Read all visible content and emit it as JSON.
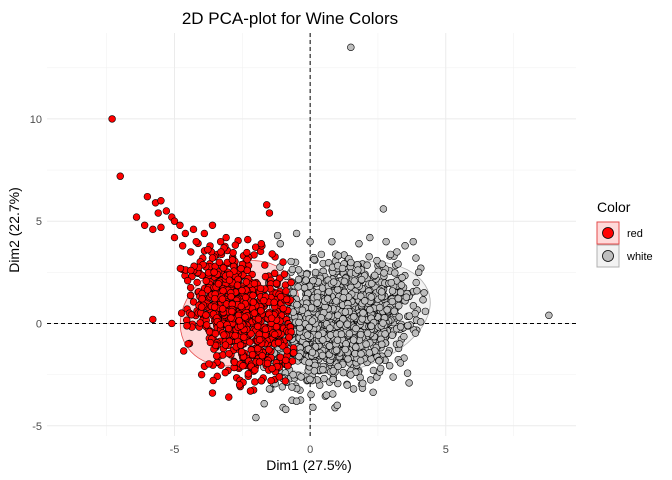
{
  "chart_data": {
    "type": "scatter",
    "title": "2D PCA-plot for Wine Colors",
    "xlabel": "Dim1 (27.5%)",
    "ylabel": "Dim2 (22.7%)",
    "xlim": [
      -9.7,
      9.8
    ],
    "ylim": [
      -5.5,
      14.2
    ],
    "xticks": [
      -5,
      0,
      5
    ],
    "yticks": [
      -5,
      0,
      5,
      10
    ],
    "grid": true,
    "reference_lines": {
      "x": 0,
      "y": 0,
      "style": "dashed"
    },
    "legend": {
      "title": "Color",
      "position": "right"
    },
    "series": [
      {
        "name": "red",
        "fill": "#ff0000",
        "ellipse": {
          "center": [
            -2.6,
            0.5
          ],
          "rx": 2.3,
          "ry": 2.4,
          "angle": -30
        },
        "points": [
          [
            -7.3,
            10.0
          ],
          [
            -7.0,
            7.2
          ],
          [
            -6.0,
            6.2
          ],
          [
            -5.7,
            5.9
          ],
          [
            -5.5,
            6.0
          ],
          [
            -5.3,
            5.5
          ],
          [
            -5.1,
            5.2
          ],
          [
            -5.0,
            5.0
          ],
          [
            -5.6,
            5.4
          ],
          [
            -6.4,
            5.2
          ],
          [
            -6.1,
            4.8
          ],
          [
            -5.8,
            4.6
          ],
          [
            -5.5,
            4.7
          ],
          [
            -4.8,
            4.8
          ],
          [
            -4.6,
            4.4
          ],
          [
            -4.3,
            4.6
          ],
          [
            -3.9,
            4.4
          ],
          [
            -4.2,
            4.0
          ],
          [
            -3.6,
            4.8
          ],
          [
            -1.6,
            5.8
          ],
          [
            -1.5,
            5.4
          ],
          [
            -5.0,
            4.2
          ],
          [
            -4.7,
            3.8
          ],
          [
            -4.4,
            3.5
          ],
          [
            -5.8,
            0.2
          ],
          [
            -5.1,
            0.0
          ],
          [
            -4.5,
            -1.0
          ],
          [
            -4.0,
            -2.5
          ],
          [
            -3.6,
            -3.4
          ],
          [
            -3.0,
            -3.6
          ],
          [
            -2.6,
            -3.0
          ],
          [
            -2.2,
            -3.3
          ],
          [
            -1.8,
            -2.8
          ],
          [
            -1.4,
            -2.2
          ],
          [
            -0.9,
            -1.8
          ],
          [
            -0.7,
            2.0
          ],
          [
            -1.0,
            3.0
          ],
          [
            -1.4,
            3.4
          ],
          [
            -1.8,
            3.9
          ],
          [
            -2.3,
            4.1
          ],
          [
            -3.3,
            4.0
          ],
          [
            -3.6,
            3.2
          ]
        ]
      },
      {
        "name": "white",
        "fill": "#bebebe",
        "ellipse": {
          "center": [
            1.2,
            0.3
          ],
          "rx": 3.3,
          "ry": 2.6,
          "angle": -15
        },
        "points": [
          [
            1.5,
            13.5
          ],
          [
            8.8,
            0.4
          ],
          [
            2.7,
            5.6
          ],
          [
            -2.0,
            -4.6
          ],
          [
            -0.9,
            -4.2
          ],
          [
            0.1,
            -4.1
          ],
          [
            1.0,
            -4.0
          ],
          [
            4.2,
            1.5
          ],
          [
            4.0,
            2.5
          ],
          [
            3.5,
            3.8
          ],
          [
            3.8,
            4.0
          ],
          [
            3.9,
            3.2
          ],
          [
            3.2,
            3.5
          ],
          [
            2.8,
            4.0
          ],
          [
            2.2,
            4.2
          ],
          [
            1.8,
            3.9
          ],
          [
            0.8,
            4.0
          ],
          [
            0.0,
            4.0
          ],
          [
            -0.5,
            4.4
          ],
          [
            -1.2,
            4.3
          ],
          [
            -1.1,
            3.9
          ],
          [
            3.3,
            -1.0
          ],
          [
            3.6,
            -0.1
          ],
          [
            3.1,
            0.6
          ],
          [
            2.6,
            -2.2
          ],
          [
            1.6,
            -3.2
          ],
          [
            0.6,
            -3.5
          ],
          [
            -0.5,
            -3.8
          ],
          [
            -1.5,
            -3.2
          ],
          [
            -1.0,
            -2.7
          ]
        ]
      }
    ]
  }
}
